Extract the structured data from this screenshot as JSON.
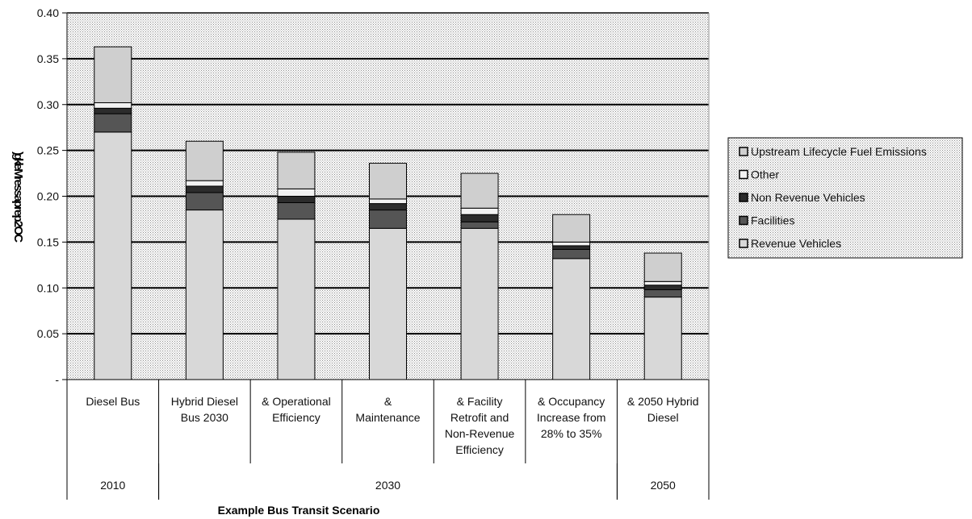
{
  "chart_data": {
    "type": "bar",
    "stacked": true,
    "xlabel": "Example Bus Transit Scenario",
    "ylabel": ")gkle Mr e s s a p r e p 2 O C",
    "ylim": [
      0,
      0.4
    ],
    "yticks": [
      "-",
      "0.05",
      "0.10",
      "0.15",
      "0.20",
      "0.25",
      "0.30",
      "0.35",
      "0.40"
    ],
    "grid": true,
    "legend_position": "right",
    "categories": [
      [
        "Diesel Bus"
      ],
      [
        "Hybrid Diesel",
        "Bus 2030"
      ],
      [
        "& Operational",
        "Efficiency"
      ],
      [
        "&",
        "Maintenance"
      ],
      [
        "& Facility",
        "Retrofit and",
        "Non-Revenue",
        "Efficiency"
      ],
      [
        "& Occupancy",
        "Increase from",
        "28% to 35%"
      ],
      [
        "& 2050 Hybrid",
        "Diesel"
      ]
    ],
    "groups": [
      {
        "label": "2010",
        "span": [
          0,
          0
        ]
      },
      {
        "label": "2030",
        "span": [
          1,
          5
        ]
      },
      {
        "label": "2050",
        "span": [
          6,
          6
        ]
      }
    ],
    "series": [
      {
        "name": "Revenue Vehicles",
        "values": [
          0.27,
          0.185,
          0.175,
          0.165,
          0.165,
          0.132,
          0.09
        ],
        "color": "#d8d8d8"
      },
      {
        "name": "Facilities",
        "values": [
          0.02,
          0.019,
          0.018,
          0.02,
          0.007,
          0.01,
          0.008
        ],
        "color": "#555555"
      },
      {
        "name": "Non Revenue Vehicles",
        "values": [
          0.006,
          0.007,
          0.007,
          0.007,
          0.008,
          0.004,
          0.005
        ],
        "color": "#2c2c2c"
      },
      {
        "name": "Other",
        "values": [
          0.006,
          0.006,
          0.008,
          0.005,
          0.007,
          0.004,
          0.004
        ],
        "color": "#f2f2f2"
      },
      {
        "name": "Upstream Lifecycle Fuel Emissions",
        "values": [
          0.061,
          0.043,
          0.04,
          0.039,
          0.038,
          0.03,
          0.031
        ],
        "color": "#cfcfcf"
      }
    ]
  }
}
